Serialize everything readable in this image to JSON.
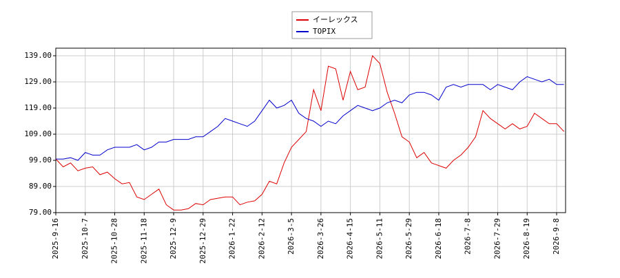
{
  "chart_data": {
    "type": "line",
    "categories": [
      "2025-9-16",
      null,
      null,
      null,
      "2025-10-7",
      null,
      null,
      null,
      "2025-10-28",
      null,
      null,
      null,
      "2025-11-18",
      null,
      null,
      null,
      "2025-12-9",
      null,
      null,
      null,
      "2025-12-29",
      null,
      null,
      null,
      "2026-1-22",
      null,
      null,
      null,
      "2026-2-12",
      null,
      null,
      null,
      "2026-3-5",
      null,
      null,
      null,
      "2026-3-26",
      null,
      null,
      null,
      "2026-4-15",
      null,
      null,
      null,
      "2026-5-11",
      null,
      null,
      null,
      "2026-5-29",
      null,
      null,
      null,
      "2026-6-18",
      null,
      null,
      null,
      "2026-7-8",
      null,
      null,
      null,
      "2026-7-29",
      null,
      null,
      null,
      "2026-8-19",
      null,
      null,
      null,
      "2026-9-8",
      null
    ],
    "series": [
      {
        "name": "イーレックス",
        "color": "#dd0000",
        "values": [
          99.5,
          96.5,
          98,
          95,
          96,
          96.5,
          93.5,
          94.5,
          92,
          90,
          90.5,
          85,
          84,
          86,
          88,
          82,
          80,
          80,
          80.5,
          82.5,
          82,
          84,
          84.5,
          85,
          85,
          82,
          83,
          83.5,
          86,
          91,
          90,
          98,
          104,
          107,
          110,
          126,
          118,
          135,
          134,
          122,
          133,
          126,
          127,
          139,
          136,
          125,
          117,
          108,
          106,
          100,
          102,
          98,
          97,
          96,
          99,
          101,
          104,
          108,
          118,
          115,
          113,
          111,
          113,
          111,
          112,
          117,
          115,
          113,
          113,
          110
        ]
      },
      {
        "name": "TOPIX",
        "color": "#0000cc",
        "values": [
          99.5,
          99.5,
          100,
          99,
          102,
          101,
          101,
          103,
          104,
          104,
          104,
          105,
          103,
          104,
          106,
          106,
          107,
          107,
          107,
          108,
          108,
          110,
          112,
          115,
          114,
          113,
          112,
          114,
          118,
          122,
          119,
          120,
          122,
          117,
          115,
          114,
          112,
          114,
          113,
          116,
          118,
          120,
          119,
          118,
          119,
          121,
          122,
          121,
          124,
          125,
          125,
          124,
          122,
          127,
          128,
          127,
          128,
          128,
          128,
          126,
          128,
          127,
          126,
          129,
          131,
          130,
          129,
          130,
          128,
          128
        ]
      }
    ],
    "ylim": [
      79,
      141.9
    ],
    "yticks": [
      {
        "value": 79,
        "label": "79.00"
      },
      {
        "value": 89,
        "label": "89.00"
      },
      {
        "value": 99,
        "label": "99.00"
      },
      {
        "value": 109,
        "label": "109.00"
      },
      {
        "value": 119,
        "label": "119.00"
      },
      {
        "value": 129,
        "label": "129.00"
      },
      {
        "value": 139,
        "label": "139.00"
      }
    ],
    "grid": true,
    "legend": "top"
  }
}
